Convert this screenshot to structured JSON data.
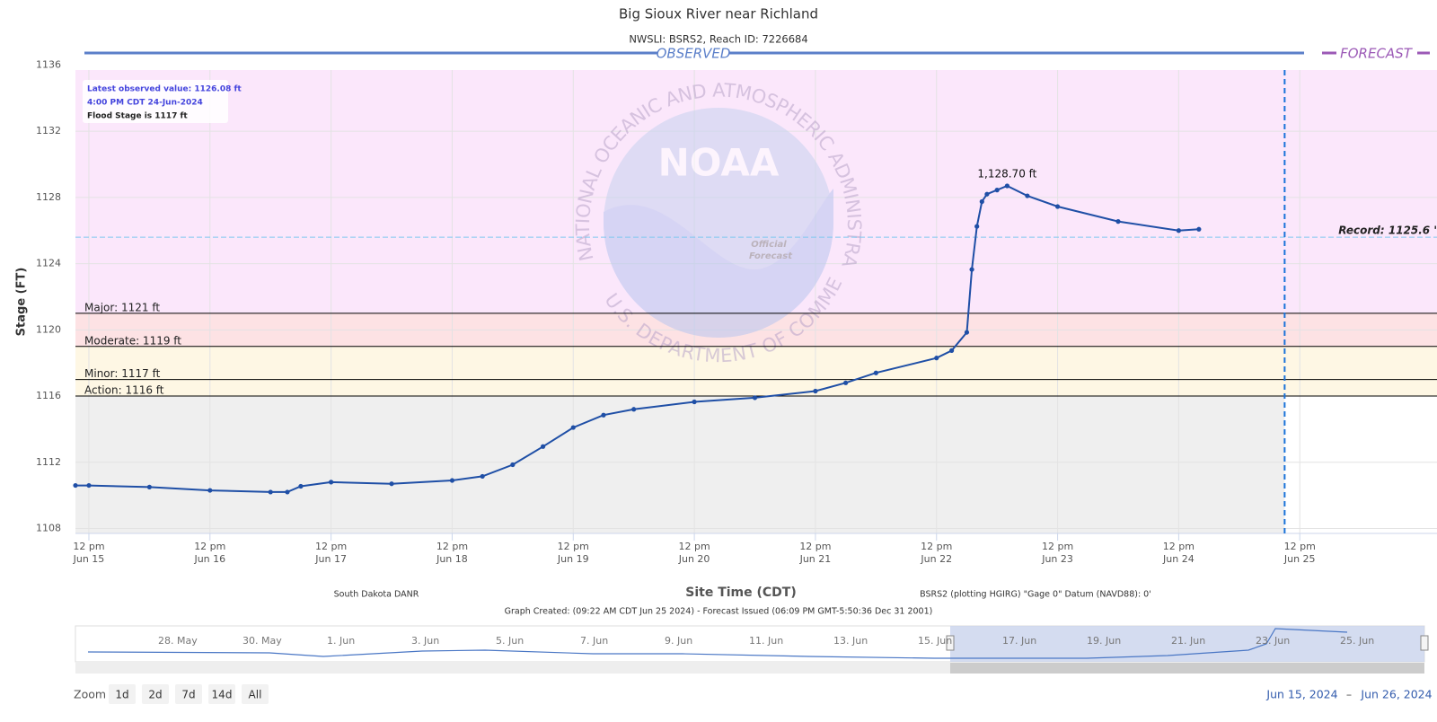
{
  "chart_data": {
    "type": "line",
    "title": "Big Sioux River near Richland",
    "subtitle": "NWSLI: BSRS2, Reach ID: 7226684",
    "observed_label": "OBSERVED",
    "forecast_label": "FORECAST",
    "y_label": "Stage (FT)",
    "x_label": "Site Time (CDT)",
    "source": "South Dakota DANR",
    "datum": "BSRS2 (plotting HGIRG) \"Gage 0\" Datum (NAVD88): 0'",
    "created": "Graph Created: (09:22 AM CDT Jun 25 2024) - Forecast Issued (06:09 PM GMT-5:50:36 Dec 31 2001)",
    "info": [
      "Latest observed value: 1126.08 ft",
      "4:00 PM CDT 24-Jun-2024",
      "Flood Stage is 1117 ft"
    ],
    "watermark": {
      "logo": "NOAA",
      "top": "NATIONAL OCEANIC AND ATMOSPHERIC ADMINISTRATION",
      "bottom": "U.S. DEPARTMENT OF COMMERCE",
      "stamp": [
        "Official",
        "Forecast"
      ]
    },
    "peak_label": "1,128.70 ft",
    "series": [
      {
        "name": "Observed",
        "color": "#1f4fa6",
        "x": [
          "Jun 15 09:20",
          "Jun 15 12:00",
          "Jun 16 00:00",
          "Jun 16 12:00",
          "Jun 17 00:00",
          "Jun 17 03:20",
          "Jun 17 06:00",
          "Jun 17 12:00",
          "Jun 18 00:00",
          "Jun 18 12:00",
          "Jun 18 18:00",
          "Jun 19 00:00",
          "Jun 19 06:00",
          "Jun 19 12:00",
          "Jun 19 18:00",
          "Jun 20 00:00",
          "Jun 20 12:00",
          "Jun 21 00:00",
          "Jun 21 12:00",
          "Jun 21 18:00",
          "Jun 22 00:00",
          "Jun 22 12:00",
          "Jun 22 15:00",
          "Jun 22 18:00",
          "Jun 22 19:00",
          "Jun 22 20:00",
          "Jun 22 21:00",
          "Jun 22 22:00",
          "Jun 23 00:00",
          "Jun 23 02:00",
          "Jun 23 06:00",
          "Jun 23 12:00",
          "Jun 24 00:00",
          "Jun 24 12:00",
          "Jun 24 16:00"
        ],
        "values": [
          1110.6,
          1110.6,
          1110.5,
          1110.3,
          1110.2,
          1110.2,
          1110.55,
          1110.8,
          1110.7,
          1110.9,
          1111.15,
          1111.85,
          1112.95,
          1114.1,
          1114.85,
          1115.2,
          1115.65,
          1115.9,
          1116.3,
          1116.8,
          1117.4,
          1118.3,
          1118.75,
          1119.85,
          1123.65,
          1126.25,
          1127.75,
          1128.2,
          1128.45,
          1128.7,
          1128.1,
          1127.45,
          1126.55,
          1126.0,
          1126.08
        ]
      }
    ],
    "peak_index": 29,
    "thresholds": [
      {
        "label": "Major: 1121 ft",
        "value": 1121,
        "color": "#fde2e4"
      },
      {
        "label": "Moderate: 1119 ft",
        "value": 1119,
        "color": "#fef7e4"
      },
      {
        "label": "Minor: 1117 ft",
        "value": 1117,
        "color": "#fef7e4"
      },
      {
        "label": "Action: 1116 ft",
        "value": 1116,
        "color": "#efefef"
      }
    ],
    "above_major_color": "#fbe7fb",
    "record": {
      "label": "Record: 1125.6 '",
      "value": 1125.6
    },
    "forecast_start": "Jun 25 09:00",
    "xlim": [
      "Jun 15 09:20",
      "Jun 26 09:30"
    ],
    "xticks": [
      {
        "value": "Jun 15 12:00",
        "time": "12 pm",
        "date": "Jun 15"
      },
      {
        "value": "Jun 16 12:00",
        "time": "12 pm",
        "date": "Jun 16"
      },
      {
        "value": "Jun 17 12:00",
        "time": "12 pm",
        "date": "Jun 17"
      },
      {
        "value": "Jun 18 12:00",
        "time": "12 pm",
        "date": "Jun 18"
      },
      {
        "value": "Jun 19 12:00",
        "time": "12 pm",
        "date": "Jun 19"
      },
      {
        "value": "Jun 20 12:00",
        "time": "12 pm",
        "date": "Jun 20"
      },
      {
        "value": "Jun 21 12:00",
        "time": "12 pm",
        "date": "Jun 21"
      },
      {
        "value": "Jun 22 12:00",
        "time": "12 pm",
        "date": "Jun 22"
      },
      {
        "value": "Jun 23 12:00",
        "time": "12 pm",
        "date": "Jun 23"
      },
      {
        "value": "Jun 24 12:00",
        "time": "12 pm",
        "date": "Jun 24"
      },
      {
        "value": "Jun 25 12:00",
        "time": "12 pm",
        "date": "Jun 25"
      }
    ],
    "ylim": [
      1107.7,
      1135.7
    ],
    "yticks": [
      1108,
      1112,
      1116,
      1120,
      1124,
      1128,
      1132,
      1136
    ],
    "grid": true,
    "navigator": {
      "labels": [
        "28. May",
        "30. May",
        "1. Jun",
        "3. Jun",
        "5. Jun",
        "7. Jun",
        "9. Jun",
        "11. Jun",
        "13. Jun",
        "15. Jun",
        "17. Jun",
        "19. Jun",
        "21. Jun",
        "23. Jun",
        "25. Jun"
      ],
      "zoom": "Zoom",
      "buttons": [
        "1d",
        "2d",
        "7d",
        "14d",
        "All"
      ],
      "range": [
        "Jun 15, 2024",
        "–",
        "Jun 26, 2024"
      ]
    }
  }
}
